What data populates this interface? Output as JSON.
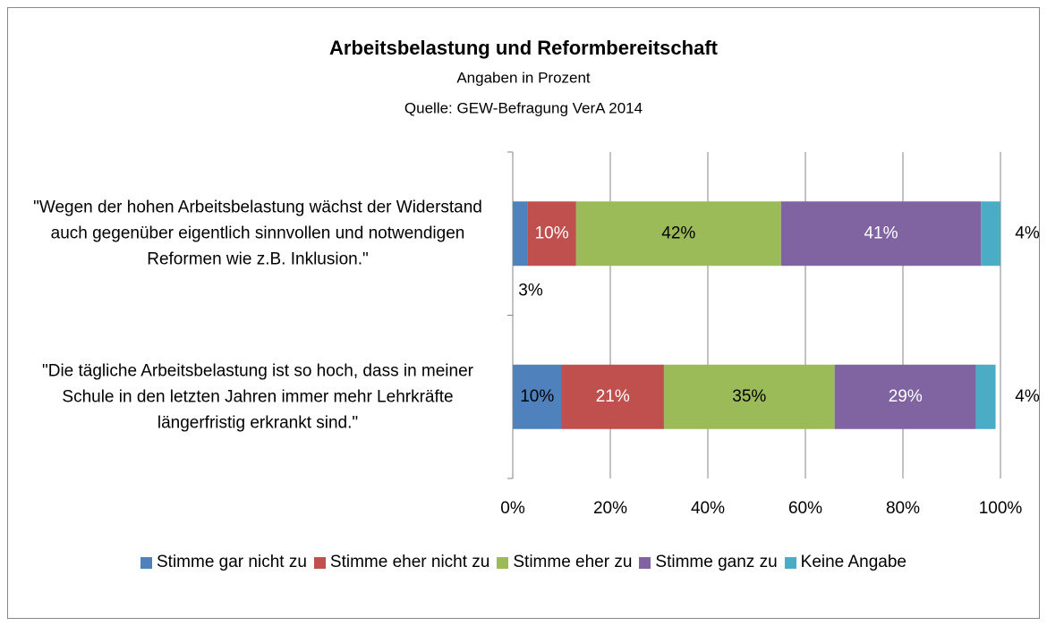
{
  "chart_data": {
    "type": "stacked_barh",
    "title": "Arbeitsbelastung und Reformbereitschaft",
    "subtitle": "Angaben in Prozent",
    "source": "Quelle: GEW-Befragung VerA 2014",
    "categories": [
      "\"Wegen der hohen Arbeitsbelastung wächst der Widerstand auch gegenüber eigentlich sinnvollen und notwendigen Reformen wie z.B. Inklusion.\"",
      "\"Die tägliche Arbeitsbelastung ist so hoch, dass in meiner Schule in den letzten Jahren immer mehr Lehrkräfte längerfristig erkrankt sind.\""
    ],
    "series": [
      {
        "name": "Stimme gar nicht zu",
        "color": "#4f81bd",
        "values": [
          3,
          10
        ],
        "value_labels": [
          "3%",
          "10%"
        ]
      },
      {
        "name": "Stimme eher nicht zu",
        "color": "#c0504d",
        "values": [
          10,
          21
        ],
        "value_labels": [
          "10%",
          "21%"
        ]
      },
      {
        "name": "Stimme eher zu",
        "color": "#9bbb59",
        "values": [
          42,
          35
        ],
        "value_labels": [
          "42%",
          "35%"
        ]
      },
      {
        "name": "Stimme ganz zu",
        "color": "#8064a2",
        "values": [
          41,
          29
        ],
        "value_labels": [
          "41%",
          "29%"
        ]
      },
      {
        "name": "Keine Angabe",
        "color": "#4bacc6",
        "values": [
          4,
          4
        ],
        "value_labels": [
          "4%",
          "4%"
        ]
      }
    ],
    "xlim": [
      0,
      100
    ],
    "xticks": [
      {
        "value": 0,
        "label": "0%"
      },
      {
        "value": 20,
        "label": "20%"
      },
      {
        "value": 40,
        "label": "40%"
      },
      {
        "value": 60,
        "label": "60%"
      },
      {
        "value": 80,
        "label": "80%"
      },
      {
        "value": 100,
        "label": "100%"
      }
    ],
    "grid": true,
    "legend": "bottom"
  }
}
